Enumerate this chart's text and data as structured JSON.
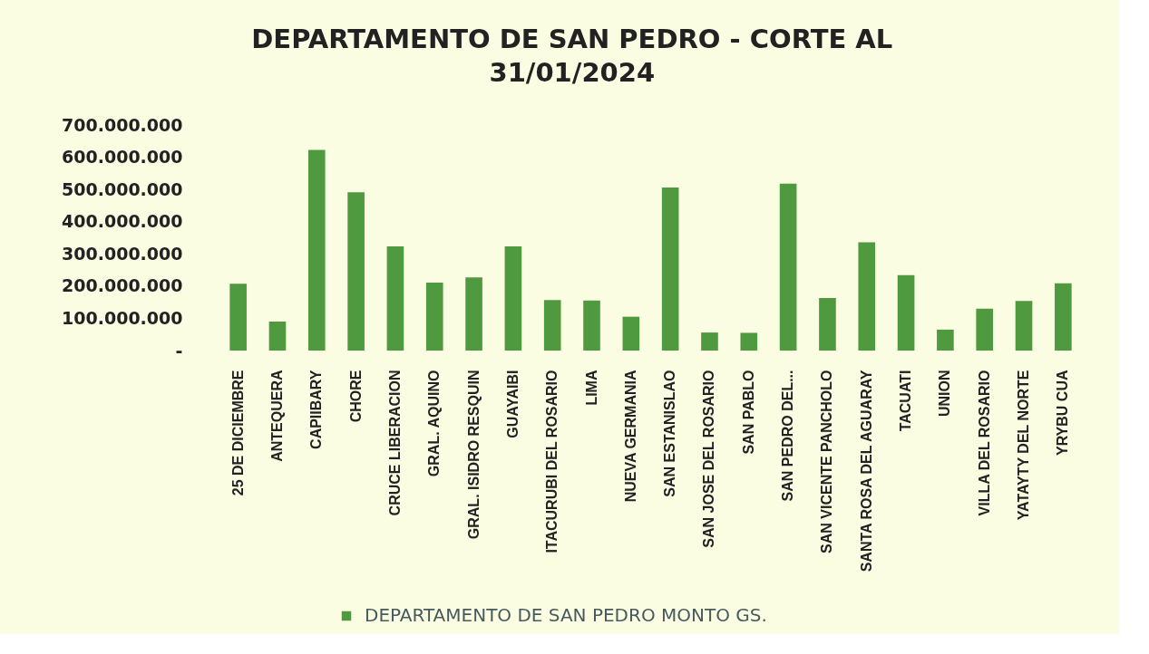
{
  "chart_data": {
    "type": "bar",
    "title": "DEPARTAMENTO DE SAN PEDRO - CORTE AL 31/01/2024",
    "categories": [
      "25 DE DICIEMBRE",
      "ANTEQUERA",
      "CAPIIBARY",
      "CHORE",
      "CRUCE LIBERACION",
      "GRAL. AQUINO",
      "GRAL. ISIDRO RESQUIN",
      "GUAYAIBI",
      "ITACURUBI DEL ROSARIO",
      "LIMA",
      "NUEVA GERMANIA",
      "SAN ESTANISLAO",
      "SAN JOSE DEL ROSARIO",
      "SAN PABLO",
      "SAN PEDRO DEL...",
      "SAN VICENTE PANCHOLO",
      "SANTA ROSA DEL AGUARAY",
      "TACUATI",
      "UNION",
      "VILLA DEL ROSARIO",
      "YATAYTY DEL NORTE",
      "YRYBU CUA"
    ],
    "series": [
      {
        "name": "DEPARTAMENTO DE SAN PEDRO MONTO GS.",
        "color": "#4f9a3f",
        "values": [
          207000000,
          90000000,
          623000000,
          491000000,
          323000000,
          211000000,
          227000000,
          323000000,
          157000000,
          155000000,
          105000000,
          506000000,
          56000000,
          55000000,
          518000000,
          163000000,
          336000000,
          234000000,
          65000000,
          130000000,
          154000000,
          209000000
        ]
      }
    ],
    "ylim": [
      0,
      700000000
    ],
    "yticks": [
      {
        "value": 0,
        "label": "-"
      },
      {
        "value": 100000000,
        "label": "100.000.000"
      },
      {
        "value": 200000000,
        "label": "200.000.000"
      },
      {
        "value": 300000000,
        "label": "300.000.000"
      },
      {
        "value": 400000000,
        "label": "400.000.000"
      },
      {
        "value": 500000000,
        "label": "500.000.000"
      },
      {
        "value": 600000000,
        "label": "600.000.000"
      },
      {
        "value": 700000000,
        "label": "700.000.000"
      }
    ],
    "legend": "bottom"
  }
}
